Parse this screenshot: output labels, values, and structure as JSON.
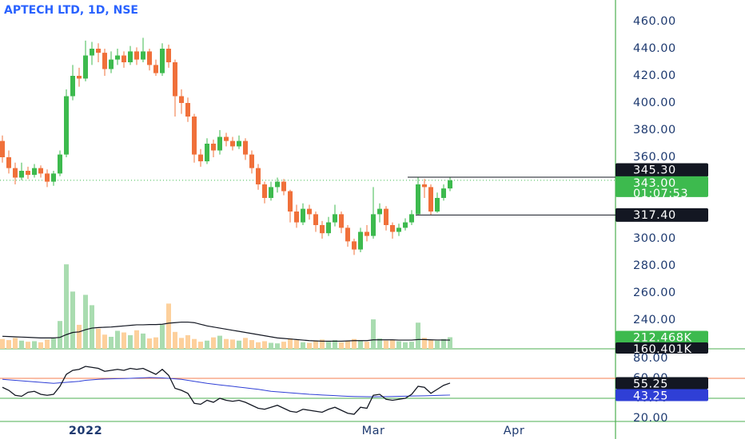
{
  "chart_data": {
    "type": "candlestick",
    "title": "APTECH LTD, 1D, NSE",
    "categories": [
      null,
      null,
      null,
      null,
      null,
      null,
      null,
      null,
      null,
      null,
      null,
      null,
      null,
      "2022",
      null,
      null,
      null,
      null,
      null,
      null,
      null,
      null,
      null,
      null,
      null,
      null,
      null,
      null,
      null,
      null,
      null,
      null,
      null,
      null,
      null,
      null,
      null,
      null,
      null,
      null,
      null,
      null,
      null,
      null,
      null,
      null,
      null,
      null,
      null,
      null,
      null,
      null,
      null,
      null,
      null,
      null,
      null,
      null,
      "Mar",
      null,
      null,
      null,
      null,
      null,
      null,
      null,
      null,
      null,
      null,
      null,
      null,
      null,
      null,
      null,
      null,
      null,
      null,
      null,
      null,
      null,
      "Apr"
    ],
    "open": [
      372,
      360,
      352,
      345,
      350,
      347,
      352,
      348,
      342,
      348,
      362,
      405,
      420,
      418,
      435,
      440,
      437,
      425,
      432,
      435,
      430,
      438,
      432,
      438,
      428,
      422,
      440,
      430,
      405,
      400,
      390,
      362,
      357,
      370,
      365,
      375,
      372,
      368,
      372,
      362,
      352,
      340,
      330,
      338,
      342,
      335,
      320,
      312,
      322,
      318,
      310,
      304,
      312,
      318,
      308,
      298,
      292,
      305,
      302,
      318,
      322,
      310,
      305,
      308,
      312,
      318,
      340,
      338,
      320,
      330,
      337,
      null,
      null,
      null,
      null,
      null,
      null,
      null,
      null,
      null,
      null
    ],
    "high": [
      376,
      365,
      356,
      356,
      353,
      355,
      354,
      351,
      350,
      365,
      410,
      428,
      426,
      446,
      445,
      444,
      440,
      438,
      440,
      438,
      442,
      441,
      448,
      440,
      432,
      444,
      443,
      432,
      410,
      404,
      392,
      366,
      374,
      373,
      380,
      378,
      375,
      376,
      374,
      365,
      355,
      342,
      342,
      345,
      344,
      336,
      325,
      326,
      325,
      320,
      313,
      316,
      325,
      320,
      310,
      300,
      308,
      310,
      338,
      326,
      324,
      312,
      311,
      315,
      321,
      345.3,
      344,
      340,
      334,
      340,
      345.3,
      null,
      null,
      null,
      null,
      null,
      null,
      null,
      null,
      null,
      null
    ],
    "low": [
      356,
      348,
      340,
      343,
      344,
      345,
      345,
      338,
      339,
      346,
      360,
      402,
      412,
      416,
      428,
      430,
      420,
      422,
      428,
      426,
      428,
      428,
      430,
      424,
      420,
      420,
      426,
      390,
      392,
      386,
      356,
      353,
      355,
      360,
      362,
      368,
      365,
      366,
      358,
      348,
      336,
      326,
      328,
      334,
      332,
      312,
      308,
      310,
      314,
      305,
      300,
      302,
      309,
      304,
      294,
      288,
      290,
      298,
      300,
      312,
      306,
      300,
      302,
      306,
      310,
      317.4,
      330,
      317.4,
      319,
      328,
      335,
      null,
      null,
      null,
      null,
      null,
      null,
      null,
      null,
      null,
      null
    ],
    "close": [
      360,
      352,
      345,
      350,
      347,
      352,
      348,
      342,
      348,
      362,
      405,
      420,
      418,
      435,
      440,
      437,
      425,
      432,
      435,
      430,
      438,
      432,
      438,
      428,
      422,
      440,
      430,
      405,
      400,
      390,
      362,
      357,
      370,
      365,
      375,
      372,
      368,
      372,
      362,
      352,
      340,
      330,
      338,
      342,
      335,
      320,
      312,
      322,
      318,
      310,
      304,
      312,
      318,
      308,
      298,
      292,
      305,
      302,
      318,
      322,
      310,
      305,
      308,
      312,
      318,
      340,
      338,
      320,
      330,
      337,
      343,
      null,
      null,
      null,
      null,
      null,
      null,
      null,
      null,
      null,
      null
    ],
    "up_color": "#3dba4e",
    "down_color": "#f0703a",
    "ylim": [
      218.8,
      475.9
    ],
    "yticks": [
      {
        "value": 460,
        "label": "460.00"
      },
      {
        "value": 440,
        "label": "440.00"
      },
      {
        "value": 420,
        "label": "420.00"
      },
      {
        "value": 400,
        "label": "400.00"
      },
      {
        "value": 380,
        "label": "380.00"
      },
      {
        "value": 360,
        "label": "360.00"
      },
      {
        "value": 300,
        "label": "300.00"
      },
      {
        "value": 280,
        "label": "280.00"
      },
      {
        "value": 260,
        "label": "260.00"
      },
      {
        "value": 240,
        "label": "240.00"
      }
    ],
    "last_price": {
      "value": 343,
      "label": "343.00"
    },
    "countdown": "01:07:53",
    "levels": [
      {
        "value": 345.3,
        "label": "345.30"
      },
      {
        "value": 317.4,
        "label": "317.40"
      }
    ],
    "volume": {
      "values": [
        180000,
        160000,
        200000,
        150000,
        130000,
        140000,
        120000,
        170000,
        190000,
        510000,
        1550000,
        1050000,
        440000,
        990000,
        800000,
        370000,
        260000,
        220000,
        330000,
        300000,
        250000,
        340000,
        280000,
        190000,
        210000,
        440000,
        830000,
        310000,
        200000,
        250000,
        180000,
        130000,
        150000,
        210000,
        240000,
        180000,
        170000,
        150000,
        200000,
        160000,
        120000,
        140000,
        110000,
        100000,
        130000,
        190000,
        160000,
        120000,
        110000,
        150000,
        170000,
        130000,
        160000,
        120000,
        140000,
        180000,
        150000,
        130000,
        540000,
        190000,
        150000,
        170000,
        140000,
        120000,
        130000,
        480000,
        200000,
        170000,
        150000,
        180000,
        212468,
        null,
        null,
        null,
        null,
        null,
        null,
        null,
        null,
        null,
        null
      ],
      "last_label": "212.468K",
      "ma": [
        230000,
        225000,
        220000,
        215000,
        210000,
        205000,
        200000,
        200000,
        200000,
        210000,
        260000,
        300000,
        310000,
        350000,
        380000,
        390000,
        395000,
        400000,
        410000,
        420000,
        430000,
        440000,
        440000,
        445000,
        445000,
        450000,
        470000,
        480000,
        490000,
        490000,
        480000,
        450000,
        420000,
        400000,
        380000,
        360000,
        340000,
        320000,
        300000,
        280000,
        260000,
        240000,
        220000,
        200000,
        190000,
        180000,
        170000,
        160000,
        150000,
        145000,
        140000,
        140000,
        140000,
        140000,
        145000,
        150000,
        150000,
        150000,
        165000,
        165000,
        165000,
        165000,
        160000,
        160000,
        160000,
        170000,
        170000,
        165000,
        162000,
        161000,
        160401,
        null,
        null,
        null,
        null,
        null,
        null,
        null,
        null,
        null,
        null
      ],
      "ma_last_label": "160.401K",
      "ma_color": "#131722",
      "up_color": "#a9dcb0",
      "down_color": "#fdd09c",
      "ylim": [
        0,
        6400000
      ]
    },
    "rsi": {
      "values": [
        51,
        48,
        43,
        42,
        46,
        47,
        44,
        43,
        44,
        52,
        64,
        68,
        69,
        72,
        71,
        70,
        67,
        68,
        69,
        68,
        70,
        69,
        70,
        67,
        64,
        69,
        63,
        50,
        48,
        45,
        35,
        34,
        38,
        36,
        40,
        38,
        37,
        38,
        36,
        33,
        30,
        29,
        31,
        33,
        30,
        27,
        26,
        29,
        28,
        27,
        26,
        29,
        31,
        28,
        25,
        24,
        31,
        30,
        43,
        44,
        39,
        38,
        39,
        40,
        44,
        52,
        51,
        45,
        49,
        53,
        55.25,
        null,
        null,
        null,
        null,
        null,
        null,
        null,
        null,
        null,
        null
      ],
      "last_label": "55.25",
      "color": "#131722",
      "signal": [
        59,
        58.5,
        58,
        57.5,
        57,
        56.5,
        56,
        55.5,
        55,
        55.5,
        56,
        56.5,
        57,
        58,
        58.5,
        59,
        59.3,
        59.5,
        59.7,
        59.8,
        60,
        60.3,
        60.5,
        60.8,
        60.6,
        60.4,
        60,
        59.5,
        59,
        58,
        57,
        56,
        55,
        54.2,
        53.4,
        52.7,
        52,
        51.2,
        50.5,
        49.7,
        49,
        48,
        47,
        46.5,
        46,
        45.5,
        45,
        44.5,
        44,
        43.7,
        43.3,
        43,
        42.7,
        42.3,
        42,
        41.8,
        41.7,
        41.6,
        41.5,
        41.6,
        41.7,
        41.8,
        42,
        42.1,
        42.3,
        42.4,
        42.5,
        42.7,
        42.9,
        43.1,
        43.25,
        null,
        null,
        null,
        null,
        null,
        null,
        null,
        null,
        null,
        null
      ],
      "signal_last_label": "43.25",
      "signal_color": "#2f3fd6",
      "ylim": [
        16.8,
        89.6
      ],
      "yticks": [
        {
          "value": 80,
          "label": "80.00"
        },
        {
          "value": 60,
          "label": "60.00"
        },
        {
          "value": 40,
          "label": "40.00"
        },
        {
          "value": 20,
          "label": "20.00"
        }
      ],
      "levels": [
        {
          "value": 60,
          "color": "#f57c4f"
        },
        {
          "value": 40,
          "color": "#4caf50"
        }
      ]
    }
  }
}
